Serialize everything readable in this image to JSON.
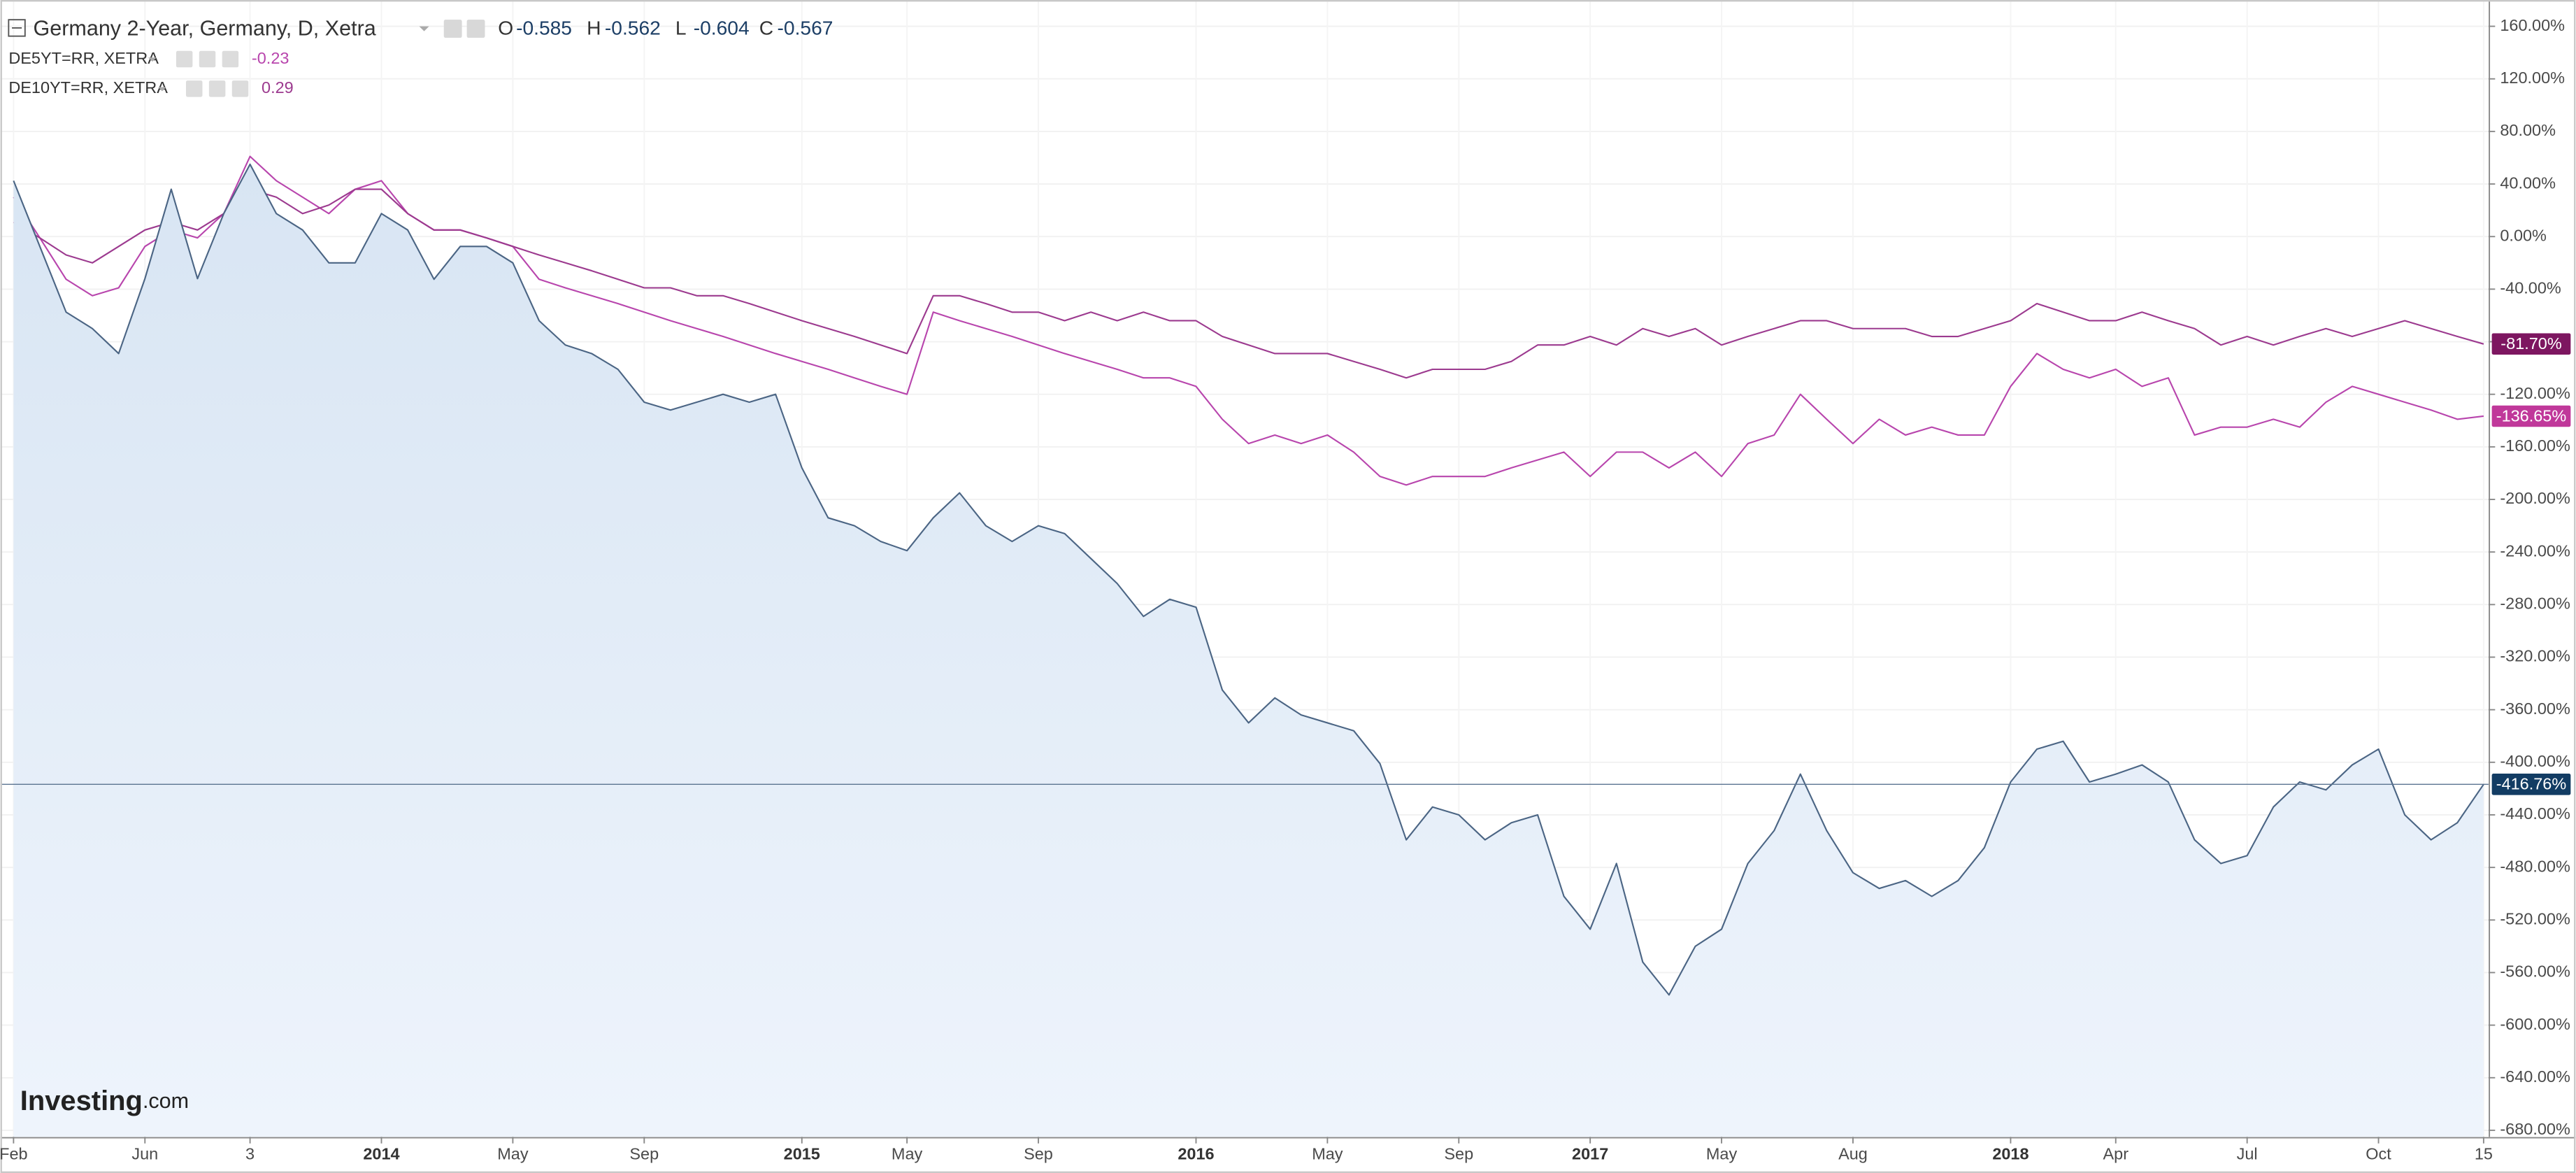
{
  "chart_data": {
    "type": "line",
    "categories": [
      "Feb",
      null,
      null,
      null,
      null,
      "Jun",
      null,
      null,
      null,
      "3",
      null,
      null,
      null,
      null,
      "2014",
      null,
      null,
      null,
      null,
      "May",
      null,
      null,
      null,
      null,
      "Sep",
      null,
      null,
      null,
      null,
      null,
      "2015",
      null,
      null,
      null,
      "May",
      null,
      null,
      null,
      null,
      "Sep",
      null,
      null,
      null,
      null,
      null,
      "2016",
      null,
      null,
      null,
      null,
      "May",
      null,
      null,
      null,
      null,
      "Sep",
      null,
      null,
      null,
      null,
      "2017",
      null,
      null,
      null,
      null,
      "May",
      null,
      null,
      null,
      null,
      "Aug",
      null,
      null,
      null,
      null,
      null,
      "2018",
      null,
      null,
      null,
      "Apr",
      null,
      null,
      null,
      null,
      "Jul",
      null,
      null,
      null,
      null,
      "Oct",
      null,
      null,
      null,
      "15"
    ],
    "series": [
      {
        "name": "Germany 2-Year, Germany, D, Xetra",
        "color": "#4b6584",
        "fill": true,
        "label_color": "#123c63",
        "last_label": "-416.76%",
        "ohlc": [
          {
            "label": "O",
            "value": -0.585
          },
          {
            "label": "H",
            "value": -0.562
          },
          {
            "label": "L",
            "value": -0.604
          },
          {
            "label": "C",
            "value": -0.567
          }
        ],
        "values": [
          42.5,
          -7.5,
          -57.5,
          -70,
          -89,
          -32,
          36,
          -32,
          17.5,
          55,
          17.5,
          5,
          -20,
          -20,
          17.5,
          5,
          -32.5,
          -7.5,
          -7.5,
          -20,
          -64,
          -82.5,
          -89,
          -101,
          -126,
          -132,
          -126,
          -120,
          -126,
          -120,
          -176,
          -214,
          -220,
          -232,
          -239,
          -214,
          -195,
          -220,
          -232,
          -220,
          -226,
          -245,
          -264,
          -289,
          -276,
          -282,
          -345,
          -370,
          -351,
          -364,
          -370,
          -376,
          -401,
          -459,
          -434,
          -440,
          -459,
          -446,
          -440,
          -502,
          -527,
          -477,
          -552,
          -577,
          -540,
          -527,
          -477,
          -452,
          -409,
          -452,
          -484,
          -496,
          -490,
          -502,
          -490,
          -465,
          -415,
          -390,
          -384,
          -415,
          -409,
          -402,
          -415,
          -459,
          -477,
          -471,
          -434,
          -415,
          -421,
          -402,
          -390,
          -440,
          -459,
          -446,
          -416.76
        ]
      },
      {
        "name": "DE5YT=RR, XETRA",
        "color": "#b845ad",
        "label_color": "#c0389a",
        "legend_value": -0.23,
        "last_label": "-136.65%",
        "values": [
          30,
          -1,
          -32.5,
          -45,
          -39,
          -7.5,
          5,
          -1,
          17.5,
          61,
          42.5,
          30,
          17.5,
          36,
          42.5,
          17.5,
          5,
          5,
          -1,
          -7.5,
          -32.5,
          -39,
          -45,
          -51,
          -57.5,
          -64,
          -70,
          -76,
          -82.5,
          -89,
          -95,
          -101,
          -107.5,
          -114,
          -120,
          -57.5,
          -64,
          -70,
          -76,
          -82.5,
          -89,
          -95,
          -101,
          -107.5,
          -107.5,
          -114,
          -139,
          -157.5,
          -151,
          -157.5,
          -151,
          -164,
          -182.5,
          -189,
          -182.5,
          -182.5,
          -182.5,
          -176,
          -170,
          -164,
          -182.5,
          -164,
          -164,
          -176,
          -164,
          -182.5,
          -157.5,
          -151,
          -120,
          -139,
          -157.5,
          -139,
          -151,
          -145,
          -151,
          -151,
          -114,
          -89,
          -101,
          -107.5,
          -101,
          -114,
          -107.5,
          -151,
          -145,
          -145,
          -139,
          -145,
          -126,
          -114,
          -120,
          -126,
          -132,
          -139,
          -136.65
        ]
      },
      {
        "name": "DE10YT=RR, XETRA",
        "color": "#9c3a8f",
        "label_color": "#7d1660",
        "legend_value": 0.29,
        "last_label": "-81.70%",
        "values": [
          11,
          -1,
          -14,
          -20,
          -7.5,
          5,
          11,
          5,
          17.5,
          36,
          30,
          17.5,
          24,
          36,
          36,
          17.5,
          5,
          5,
          -1,
          -7.5,
          -14,
          -20,
          -26,
          -32.5,
          -39,
          -39,
          -45,
          -45,
          -51,
          -57.5,
          -64,
          -70,
          -76,
          -82.5,
          -89,
          -45,
          -45,
          -51,
          -57.5,
          -57.5,
          -64,
          -57.5,
          -64,
          -57.5,
          -64,
          -64,
          -76,
          -82.5,
          -89,
          -89,
          -89,
          -95,
          -101,
          -107.5,
          -101,
          -101,
          -101,
          -95,
          -82.5,
          -82.5,
          -76,
          -82.5,
          -70,
          -76,
          -70,
          -82.5,
          -76,
          -70,
          -64,
          -64,
          -70,
          -70,
          -70,
          -76,
          -76,
          -70,
          -64,
          -51,
          -57.5,
          -64,
          -64,
          -57.5,
          -64,
          -70,
          -82.5,
          -76,
          -82.5,
          -76,
          -70,
          -76,
          -70,
          -64,
          -70,
          -76,
          -81.7
        ]
      }
    ],
    "ylim": [
      -685,
      180
    ],
    "yticks": [
      {
        "value": 160,
        "label": "160.00%"
      },
      {
        "value": 120,
        "label": "120.00%"
      },
      {
        "value": 80,
        "label": "80.00%"
      },
      {
        "value": 40,
        "label": "40.00%"
      },
      {
        "value": 0,
        "label": "0.00%"
      },
      {
        "value": -40,
        "label": "-40.00%"
      },
      {
        "value": -80,
        "label": "-80.00%"
      },
      {
        "value": -120,
        "label": "-120.00%"
      },
      {
        "value": -160,
        "label": "-160.00%"
      },
      {
        "value": -200,
        "label": "-200.00%"
      },
      {
        "value": -240,
        "label": "-240.00%"
      },
      {
        "value": -280,
        "label": "-280.00%"
      },
      {
        "value": -320,
        "label": "-320.00%"
      },
      {
        "value": -360,
        "label": "-360.00%"
      },
      {
        "value": -400,
        "label": "-400.00%"
      },
      {
        "value": -440,
        "label": "-440.00%"
      },
      {
        "value": -480,
        "label": "-480.00%"
      },
      {
        "value": -520,
        "label": "-520.00%"
      },
      {
        "value": -560,
        "label": "-560.00%"
      },
      {
        "value": -600,
        "label": "-600.00%"
      },
      {
        "value": -640,
        "label": "-640.00%"
      },
      {
        "value": -680,
        "label": "-680.00%"
      }
    ],
    "grid": true,
    "logo": {
      "name": "Investing",
      "domain": ".com"
    }
  }
}
